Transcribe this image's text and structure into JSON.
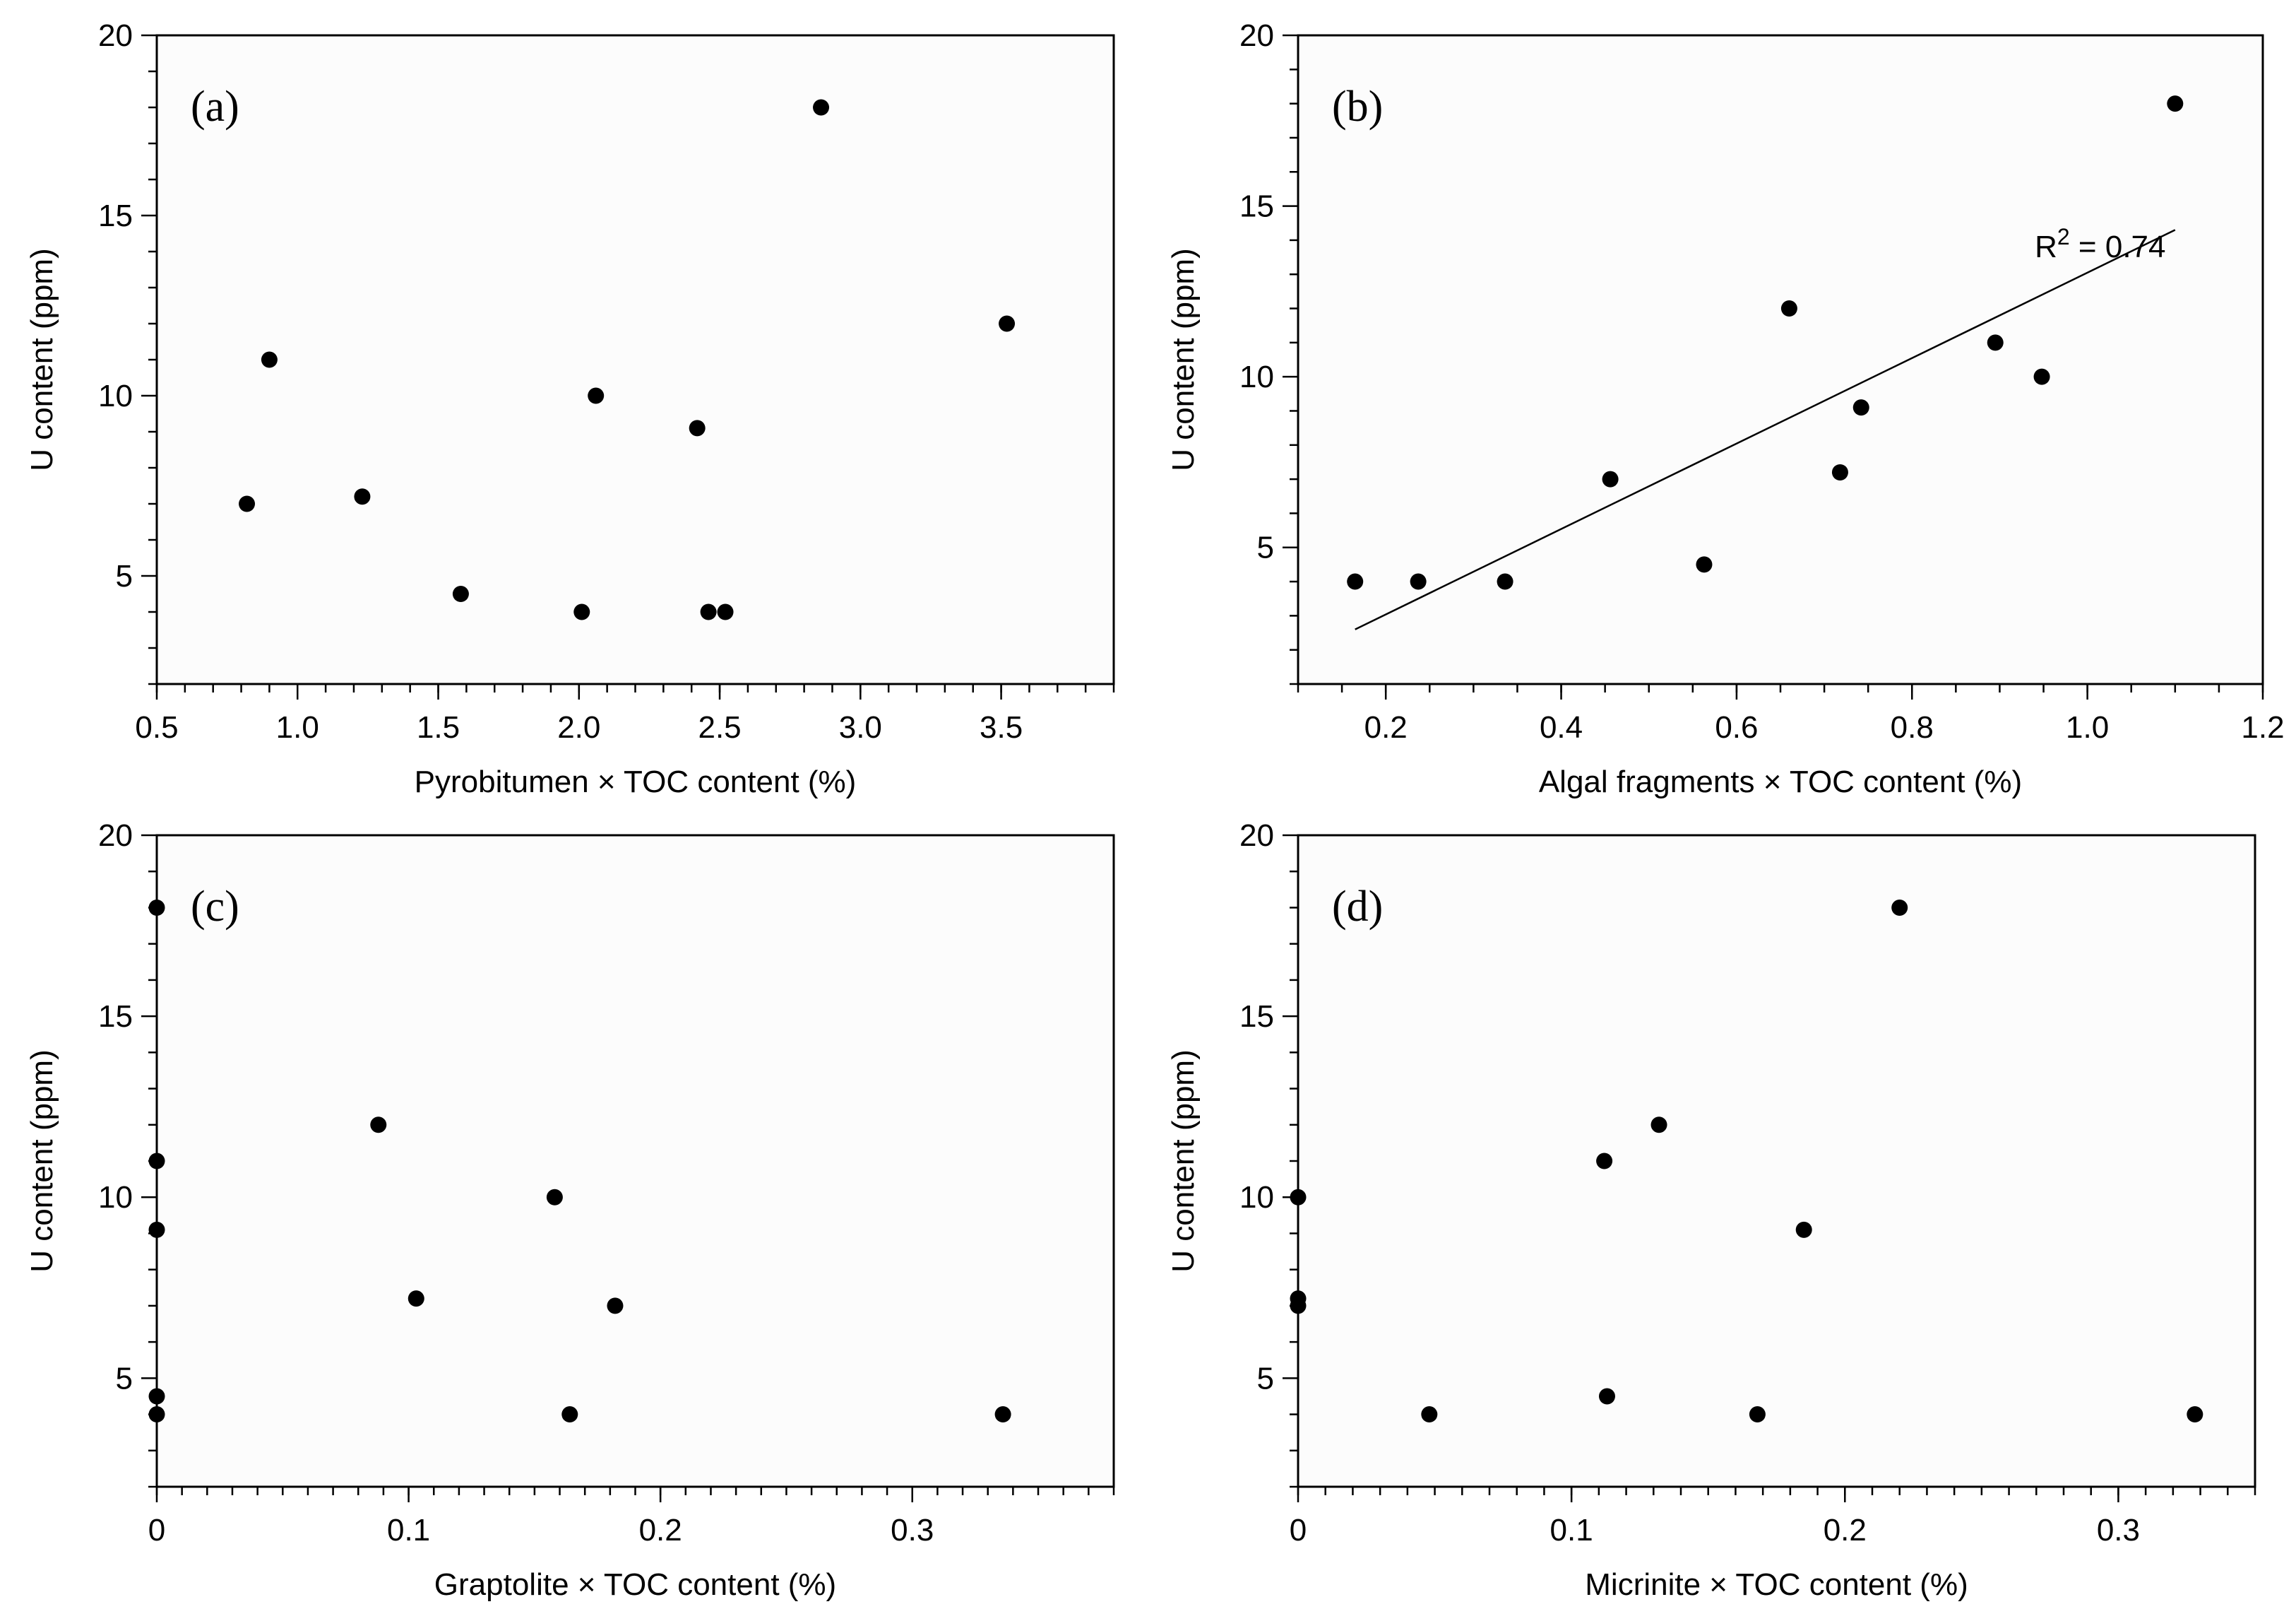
{
  "chart_data": [
    {
      "id": "a",
      "type": "scatter",
      "panel_label": "(a)",
      "xlabel": "Pyrobitumen × TOC content (%)",
      "ylabel": "U content (ppm)",
      "xlim": [
        0.5,
        3.9
      ],
      "ylim": [
        2,
        20
      ],
      "xticks": [
        "0.5",
        "1.0",
        "1.5",
        "2.0",
        "2.5",
        "3.0",
        "3.5"
      ],
      "xtick_values": [
        0.5,
        1.0,
        1.5,
        2.0,
        2.5,
        3.0,
        3.5
      ],
      "xminor_step": 0.1,
      "yticks": [
        "5",
        "10",
        "15",
        "20"
      ],
      "ytick_values": [
        5,
        10,
        15,
        20
      ],
      "points": [
        {
          "x": 0.82,
          "y": 7.0
        },
        {
          "x": 0.9,
          "y": 11.0
        },
        {
          "x": 1.23,
          "y": 7.2
        },
        {
          "x": 1.58,
          "y": 4.5
        },
        {
          "x": 2.01,
          "y": 4.0
        },
        {
          "x": 2.06,
          "y": 10.0
        },
        {
          "x": 2.42,
          "y": 9.1
        },
        {
          "x": 2.46,
          "y": 4.0
        },
        {
          "x": 2.52,
          "y": 4.0
        },
        {
          "x": 2.86,
          "y": 18.0
        },
        {
          "x": 3.52,
          "y": 12.0
        }
      ]
    },
    {
      "id": "b",
      "type": "scatter",
      "panel_label": "(b)",
      "xlabel": "Algal fragments × TOC content (%)",
      "ylabel": "U content (ppm)",
      "xlim": [
        0.1,
        1.2
      ],
      "ylim": [
        1,
        20
      ],
      "xticks": [
        "0.2",
        "0.4",
        "0.6",
        "0.8",
        "1.0",
        "1.2"
      ],
      "xtick_values": [
        0.2,
        0.4,
        0.6,
        0.8,
        1.0,
        1.2
      ],
      "xminor_step": 0.05,
      "yticks": [
        "5",
        "10",
        "15",
        "20"
      ],
      "ytick_values": [
        5,
        10,
        15,
        20
      ],
      "points": [
        {
          "x": 0.165,
          "y": 4.0
        },
        {
          "x": 0.237,
          "y": 4.0
        },
        {
          "x": 0.336,
          "y": 4.0
        },
        {
          "x": 0.456,
          "y": 7.0
        },
        {
          "x": 0.563,
          "y": 4.5
        },
        {
          "x": 0.66,
          "y": 12.0
        },
        {
          "x": 0.718,
          "y": 7.2
        },
        {
          "x": 0.742,
          "y": 9.1
        },
        {
          "x": 0.895,
          "y": 11.0
        },
        {
          "x": 0.948,
          "y": 10.0
        },
        {
          "x": 1.1,
          "y": 18.0
        }
      ],
      "fit_line": {
        "x": [
          0.165,
          1.1
        ],
        "y": [
          2.6,
          14.3
        ]
      },
      "annotation": {
        "base": "R",
        "sup": "2",
        "rest": " = 0.74",
        "x": 0.94,
        "y": 13.5
      }
    },
    {
      "id": "c",
      "type": "scatter",
      "panel_label": "(c)",
      "xlabel": "Graptolite × TOC content (%)",
      "ylabel": "U content (ppm)",
      "xlim": [
        0,
        0.38
      ],
      "ylim": [
        2,
        20
      ],
      "xticks": [
        "0",
        "0.1",
        "0.2",
        "0.3"
      ],
      "xtick_values": [
        0,
        0.1,
        0.2,
        0.3
      ],
      "xminor_step": 0.01,
      "yticks": [
        "5",
        "10",
        "15",
        "20"
      ],
      "ytick_values": [
        5,
        10,
        15,
        20
      ],
      "points": [
        {
          "x": 0.0,
          "y": 18.0
        },
        {
          "x": 0.0,
          "y": 11.0
        },
        {
          "x": 0.0,
          "y": 9.1
        },
        {
          "x": 0.0,
          "y": 4.5
        },
        {
          "x": 0.0,
          "y": 4.0
        },
        {
          "x": 0.088,
          "y": 12.0
        },
        {
          "x": 0.103,
          "y": 7.2
        },
        {
          "x": 0.158,
          "y": 10.0
        },
        {
          "x": 0.164,
          "y": 4.0
        },
        {
          "x": 0.182,
          "y": 7.0
        },
        {
          "x": 0.336,
          "y": 4.0
        }
      ]
    },
    {
      "id": "d",
      "type": "scatter",
      "panel_label": "(d)",
      "xlabel": "Micrinite × TOC content (%)",
      "ylabel": "U content (ppm)",
      "xlim": [
        0,
        0.35
      ],
      "ylim": [
        2,
        20
      ],
      "xticks": [
        "0",
        "0.1",
        "0.2",
        "0.3"
      ],
      "xtick_values": [
        0,
        0.1,
        0.2,
        0.3
      ],
      "xminor_step": 0.01,
      "yticks": [
        "5",
        "10",
        "15",
        "20"
      ],
      "ytick_values": [
        5,
        10,
        15,
        20
      ],
      "points": [
        {
          "x": 0.0,
          "y": 10.0
        },
        {
          "x": 0.0,
          "y": 7.2
        },
        {
          "x": 0.0,
          "y": 7.0
        },
        {
          "x": 0.048,
          "y": 4.0
        },
        {
          "x": 0.112,
          "y": 11.0
        },
        {
          "x": 0.113,
          "y": 4.5
        },
        {
          "x": 0.132,
          "y": 12.0
        },
        {
          "x": 0.168,
          "y": 4.0
        },
        {
          "x": 0.185,
          "y": 9.1
        },
        {
          "x": 0.22,
          "y": 18.0
        },
        {
          "x": 0.328,
          "y": 4.0
        }
      ]
    }
  ]
}
